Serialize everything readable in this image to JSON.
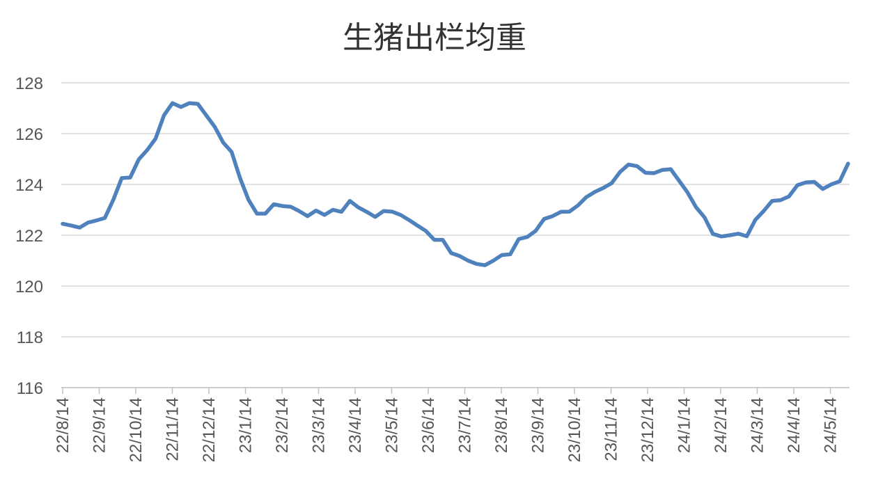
{
  "chart_data": {
    "type": "line",
    "title": "生猪出栏均重",
    "xlabel": "",
    "ylabel": "",
    "ylim": [
      116,
      128
    ],
    "yticks": [
      116,
      118,
      120,
      122,
      124,
      126,
      128
    ],
    "grid": true,
    "legend": "none",
    "x_tick_labels": [
      "22/8/14",
      "22/9/14",
      "22/10/14",
      "22/11/14",
      "22/12/14",
      "23/1/14",
      "23/2/14",
      "23/3/14",
      "23/4/14",
      "23/5/14",
      "23/6/14",
      "23/7/14",
      "23/8/14",
      "23/9/14",
      "23/10/14",
      "23/11/14",
      "23/12/14",
      "24/1/14",
      "24/2/14",
      "24/3/14",
      "24/4/14",
      "24/5/14"
    ],
    "series": [
      {
        "color": "#4f81bd",
        "values": [
          122.45,
          122.38,
          122.3,
          122.5,
          122.58,
          122.68,
          123.4,
          124.25,
          124.27,
          124.98,
          125.35,
          125.8,
          126.72,
          127.2,
          127.05,
          127.2,
          127.17,
          126.72,
          126.27,
          125.65,
          125.28,
          124.25,
          123.4,
          122.85,
          122.85,
          123.22,
          123.15,
          123.12,
          122.95,
          122.75,
          122.97,
          122.8,
          123.0,
          122.92,
          123.35,
          123.1,
          122.92,
          122.72,
          122.95,
          122.93,
          122.8,
          122.6,
          122.38,
          122.17,
          121.82,
          121.82,
          121.3,
          121.18,
          121.0,
          120.87,
          120.82,
          121.0,
          121.22,
          121.25,
          121.85,
          121.93,
          122.17,
          122.64,
          122.75,
          122.92,
          122.93,
          123.17,
          123.5,
          123.7,
          123.86,
          124.05,
          124.49,
          124.78,
          124.72,
          124.46,
          124.44,
          124.57,
          124.6,
          124.14,
          123.68,
          123.1,
          122.7,
          122.05,
          121.95,
          122.0,
          122.06,
          121.96,
          122.6,
          122.95,
          123.35,
          123.38,
          123.53,
          123.97,
          124.08,
          124.1,
          123.82,
          124.0,
          124.12,
          124.82
        ]
      }
    ]
  }
}
